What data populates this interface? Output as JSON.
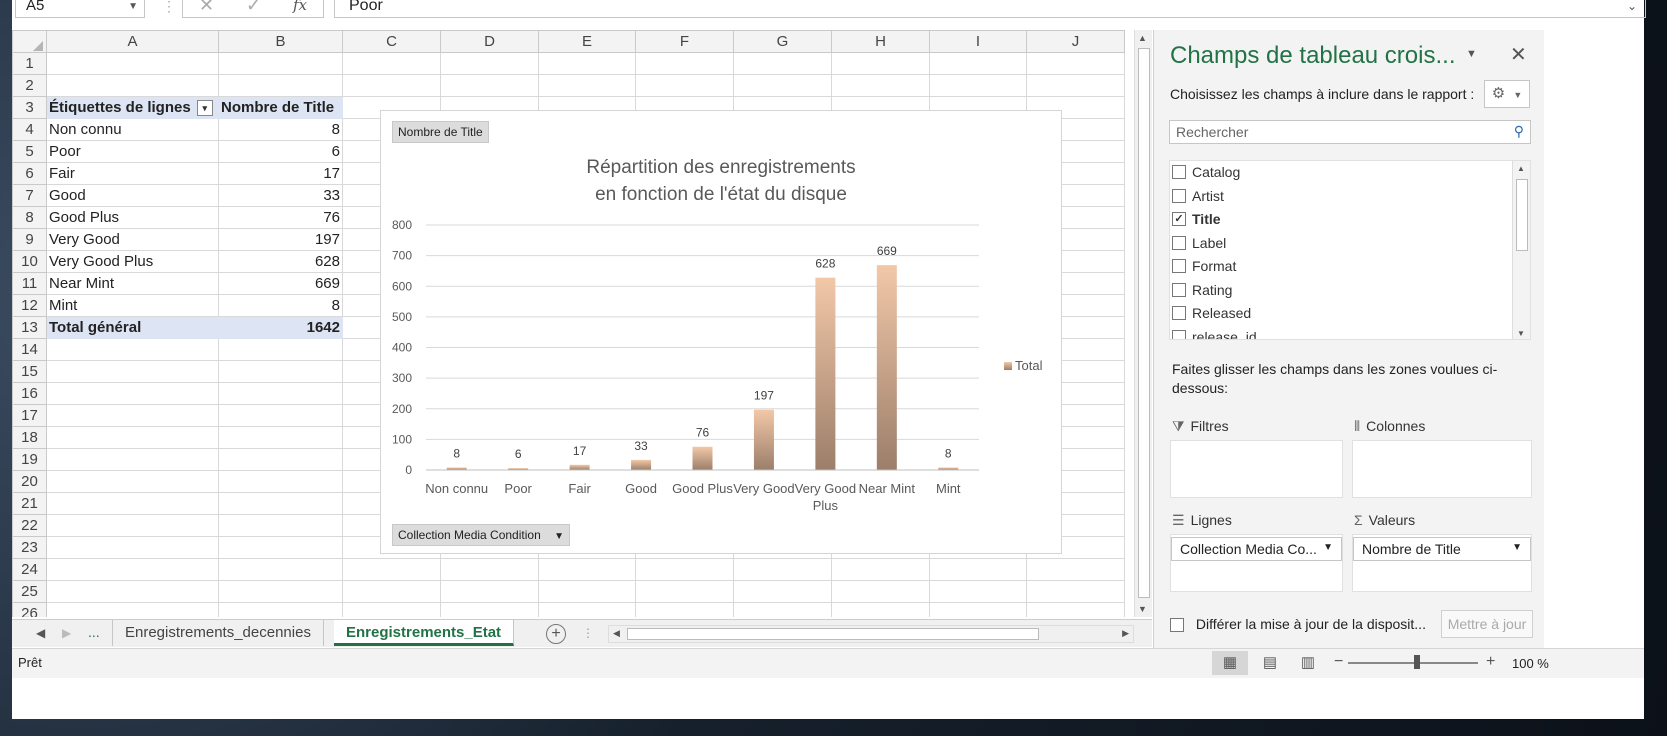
{
  "formula_bar": {
    "name_box": "A5",
    "formula": "Poor",
    "fx_label": "fx"
  },
  "columns": [
    "A",
    "B",
    "C",
    "D",
    "E",
    "F",
    "G",
    "H",
    "I",
    "J"
  ],
  "pivot": {
    "header_rows": "Étiquettes de lignes",
    "header_values": "Nombre de Title",
    "rows": [
      {
        "label": "Non connu",
        "value": "8"
      },
      {
        "label": "Poor",
        "value": "6"
      },
      {
        "label": "Fair",
        "value": "17"
      },
      {
        "label": "Good",
        "value": "33"
      },
      {
        "label": "Good Plus",
        "value": "76"
      },
      {
        "label": "Very Good",
        "value": "197"
      },
      {
        "label": "Very Good Plus",
        "value": "628"
      },
      {
        "label": "Near Mint",
        "value": "669"
      },
      {
        "label": "Mint",
        "value": "8"
      }
    ],
    "total_label": "Total général",
    "total_value": "1642"
  },
  "chart": {
    "values_button": "Nombre de Title",
    "axis_button": "Collection Media Condition",
    "title_line1": "Répartition des enregistrements",
    "title_line2": "en fonction de l'état du disque",
    "legend": "Total"
  },
  "chart_data": {
    "type": "bar",
    "title": "Répartition des enregistrements en fonction de l'état du disque",
    "categories": [
      "Non connu",
      "Poor",
      "Fair",
      "Good",
      "Good Plus",
      "Very Good",
      "Very Good Plus",
      "Near Mint",
      "Mint"
    ],
    "series": [
      {
        "name": "Total",
        "values": [
          8,
          6,
          17,
          33,
          76,
          197,
          628,
          669,
          8
        ]
      }
    ],
    "ylim": [
      0,
      800
    ],
    "yticks": [
      0,
      100,
      200,
      300,
      400,
      500,
      600,
      700,
      800
    ],
    "grid": true,
    "legend_position": "right"
  },
  "tabs": {
    "more": "...",
    "sheets": [
      "Enregistrements_decennies",
      "Enregistrements_Etat"
    ],
    "active": 1
  },
  "status": {
    "ready": "Prêt",
    "zoom": "100 %"
  },
  "panel": {
    "title": "Champs de tableau crois...",
    "subtitle": "Choisissez les champs à inclure dans le rapport :",
    "search_placeholder": "Rechercher",
    "fields": [
      {
        "name": "Catalog",
        "checked": false
      },
      {
        "name": "Artist",
        "checked": false
      },
      {
        "name": "Title",
        "checked": true
      },
      {
        "name": "Label",
        "checked": false
      },
      {
        "name": "Format",
        "checked": false
      },
      {
        "name": "Rating",
        "checked": false
      },
      {
        "name": "Released",
        "checked": false
      },
      {
        "name": "release_id",
        "checked": false
      }
    ],
    "drag_hint": "Faites glisser les champs dans les zones voulues ci-dessous:",
    "zones": {
      "filters": "Filtres",
      "columns": "Colonnes",
      "rows": "Lignes",
      "values": "Valeurs",
      "rows_field": "Collection Media Co...",
      "values_field": "Nombre de Title"
    },
    "defer_label": "Différer la mise à jour de la disposit...",
    "update_button": "Mettre à jour"
  }
}
